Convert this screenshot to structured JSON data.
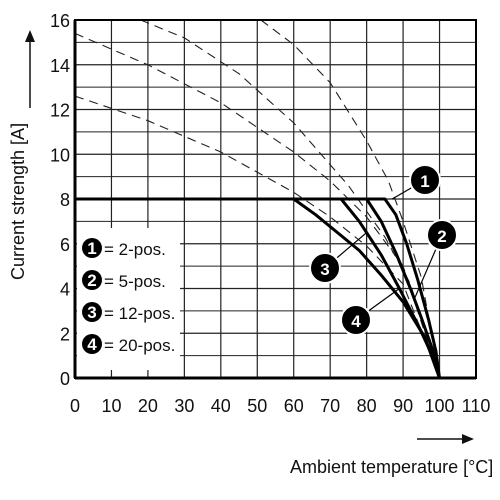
{
  "chart_data": {
    "type": "line",
    "xlabel": "Ambient temperature [°C]",
    "ylabel": "Current strength [A]",
    "xlim": [
      0,
      110
    ],
    "ylim": [
      0,
      16
    ],
    "x_ticks": [
      "0",
      "10",
      "20",
      "30",
      "40",
      "50",
      "60",
      "70",
      "80",
      "90",
      "100",
      "110"
    ],
    "y_ticks": [
      "0",
      "2",
      "4",
      "6",
      "8",
      "10",
      "12",
      "14",
      "16"
    ],
    "grid": true,
    "legend_position": "bottom-left",
    "series": [
      {
        "name": "2-pos.",
        "label": "1",
        "style": "solid",
        "points": [
          [
            0,
            8
          ],
          [
            85,
            8
          ],
          [
            88,
            7.3
          ],
          [
            91,
            6.0
          ],
          [
            94,
            4.4
          ],
          [
            97,
            2.6
          ],
          [
            99,
            1.2
          ],
          [
            100,
            0
          ]
        ]
      },
      {
        "name": "5-pos.",
        "label": "2",
        "style": "solid",
        "points": [
          [
            0,
            8
          ],
          [
            80,
            8
          ],
          [
            84,
            7.0
          ],
          [
            88,
            5.6
          ],
          [
            92,
            4.0
          ],
          [
            95,
            2.7
          ],
          [
            98,
            1.3
          ],
          [
            100,
            0
          ]
        ]
      },
      {
        "name": "12-pos.",
        "label": "3",
        "style": "solid",
        "points": [
          [
            0,
            8
          ],
          [
            73,
            8
          ],
          [
            78,
            7.0
          ],
          [
            84,
            5.5
          ],
          [
            89,
            4.0
          ],
          [
            94,
            2.4
          ],
          [
            98,
            1.0
          ],
          [
            100,
            0
          ]
        ]
      },
      {
        "name": "20-pos.",
        "label": "4",
        "style": "solid",
        "points": [
          [
            0,
            8
          ],
          [
            60,
            8
          ],
          [
            66,
            7.3
          ],
          [
            72,
            6.5
          ],
          [
            78,
            5.7
          ],
          [
            84,
            4.6
          ],
          [
            90,
            3.4
          ],
          [
            96,
            1.8
          ],
          [
            100,
            0
          ]
        ]
      },
      {
        "style": "dashed",
        "points": [
          [
            0,
            12.6
          ],
          [
            20,
            11.5
          ],
          [
            40,
            10.1
          ],
          [
            60,
            8.3
          ],
          [
            70,
            7.2
          ],
          [
            80,
            5.9
          ],
          [
            90,
            4.2
          ],
          [
            100,
            0
          ]
        ]
      },
      {
        "style": "dashed",
        "points": [
          [
            0,
            15.4
          ],
          [
            20,
            14.0
          ],
          [
            40,
            12.3
          ],
          [
            60,
            10.1
          ],
          [
            70,
            8.8
          ],
          [
            80,
            7.2
          ],
          [
            90,
            5.0
          ],
          [
            100,
            0
          ]
        ]
      },
      {
        "style": "dashed",
        "points": [
          [
            18,
            16
          ],
          [
            30,
            15.2
          ],
          [
            45,
            13.6
          ],
          [
            60,
            11.4
          ],
          [
            75,
            8.6
          ],
          [
            85,
            6.3
          ],
          [
            92,
            4.2
          ],
          [
            100,
            0
          ]
        ]
      },
      {
        "style": "dashed",
        "points": [
          [
            51,
            16
          ],
          [
            60,
            14.9
          ],
          [
            70,
            13.2
          ],
          [
            80,
            10.6
          ],
          [
            86,
            8.8
          ],
          [
            90,
            7.0
          ],
          [
            95,
            4.5
          ],
          [
            100,
            0
          ]
        ]
      }
    ],
    "legend": [
      {
        "badge": "1",
        "text": "= 2-pos."
      },
      {
        "badge": "2",
        "text": "= 5-pos."
      },
      {
        "badge": "3",
        "text": "= 12-pos."
      },
      {
        "badge": "4",
        "text": "= 20-pos."
      }
    ],
    "callouts": [
      {
        "label": "1",
        "at": [
          87,
          8
        ]
      },
      {
        "label": "2",
        "at": [
          93,
          3.5
        ]
      },
      {
        "label": "3",
        "at": [
          80,
          6.5
        ]
      },
      {
        "label": "4",
        "at": [
          89,
          4.0
        ]
      }
    ]
  }
}
